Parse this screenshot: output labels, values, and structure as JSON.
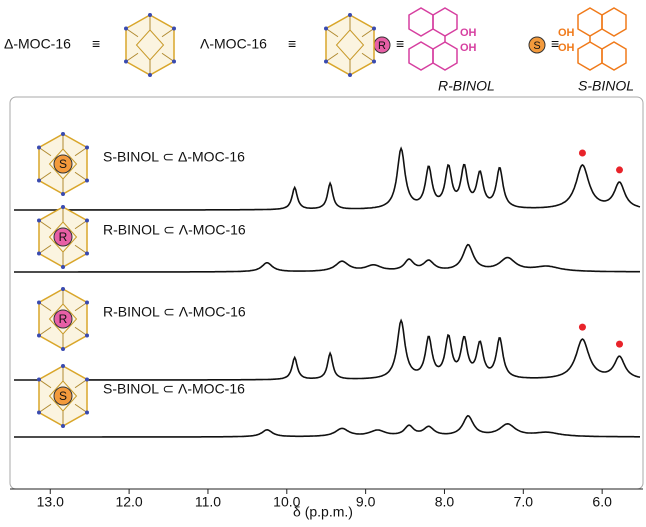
{
  "legend": {
    "delta": "Δ-MOC-16",
    "lambda": "Λ-MOC-16",
    "equiv": "≡",
    "r_guest": "R",
    "s_guest": "S",
    "r_name": "R-BINOL",
    "s_name": "S-BINOL",
    "oh": "OH"
  },
  "chart_data": {
    "type": "spectrum",
    "xlabel": "δ (p.p.m.)",
    "xlim": [
      13.46,
      5.52
    ],
    "xticks": [
      {
        "value": 13,
        "label": "13.0"
      },
      {
        "value": 12,
        "label": "12.0"
      },
      {
        "value": 11,
        "label": "11.0"
      },
      {
        "value": 10,
        "label": "10.0"
      },
      {
        "value": 9,
        "label": "9.0"
      },
      {
        "value": 8,
        "label": "8.0"
      },
      {
        "value": 7,
        "label": "7.0"
      },
      {
        "value": 6,
        "label": "6.0"
      }
    ],
    "dot_color": "#e8232a",
    "series": [
      {
        "name": "S-BINOL ⊂ Δ-MOC-16",
        "guest": "S",
        "color": "#f39a3c",
        "peaks": [
          {
            "ppm": 9.9,
            "height": 22,
            "width": 0.04
          },
          {
            "ppm": 9.45,
            "height": 26,
            "width": 0.04
          },
          {
            "ppm": 8.55,
            "height": 60,
            "width": 0.06
          },
          {
            "ppm": 8.2,
            "height": 40,
            "width": 0.05
          },
          {
            "ppm": 7.95,
            "height": 40,
            "width": 0.05
          },
          {
            "ppm": 7.75,
            "height": 40,
            "width": 0.05
          },
          {
            "ppm": 7.55,
            "height": 34,
            "width": 0.05
          },
          {
            "ppm": 7.3,
            "height": 40,
            "width": 0.05
          },
          {
            "ppm": 6.25,
            "height": 44,
            "width": 0.1,
            "dot": true
          },
          {
            "ppm": 5.78,
            "height": 26,
            "width": 0.08,
            "dot": true
          }
        ]
      },
      {
        "name": "R-BINOL ⊂ Λ-MOC-16",
        "guest": "R",
        "color": "#e75fa6",
        "peaks": [
          {
            "ppm": 10.25,
            "height": 9,
            "width": 0.08
          },
          {
            "ppm": 9.3,
            "height": 10,
            "width": 0.1
          },
          {
            "ppm": 8.9,
            "height": 6,
            "width": 0.12
          },
          {
            "ppm": 8.45,
            "height": 11,
            "width": 0.07
          },
          {
            "ppm": 8.2,
            "height": 10,
            "width": 0.08
          },
          {
            "ppm": 7.7,
            "height": 26,
            "width": 0.08
          },
          {
            "ppm": 7.2,
            "height": 13,
            "width": 0.12
          },
          {
            "ppm": 6.7,
            "height": 5,
            "width": 0.2
          }
        ]
      },
      {
        "name": "R-BINOL ⊂ Λ-MOC-16",
        "guest": "R",
        "color": "#e75fa6",
        "peaks": [
          {
            "ppm": 9.9,
            "height": 22,
            "width": 0.04
          },
          {
            "ppm": 9.45,
            "height": 26,
            "width": 0.04
          },
          {
            "ppm": 8.55,
            "height": 58,
            "width": 0.06
          },
          {
            "ppm": 8.2,
            "height": 40,
            "width": 0.05
          },
          {
            "ppm": 7.95,
            "height": 40,
            "width": 0.05
          },
          {
            "ppm": 7.75,
            "height": 38,
            "width": 0.05
          },
          {
            "ppm": 7.55,
            "height": 34,
            "width": 0.05
          },
          {
            "ppm": 7.3,
            "height": 40,
            "width": 0.05
          },
          {
            "ppm": 6.25,
            "height": 40,
            "width": 0.1,
            "dot": true
          },
          {
            "ppm": 5.78,
            "height": 22,
            "width": 0.08,
            "dot": true
          }
        ]
      },
      {
        "name": "S-BINOL ⊂ Λ-MOC-16",
        "guest": "S",
        "color": "#f39a3c",
        "peaks": [
          {
            "ppm": 10.25,
            "height": 7,
            "width": 0.08
          },
          {
            "ppm": 9.3,
            "height": 8,
            "width": 0.1
          },
          {
            "ppm": 8.85,
            "height": 6,
            "width": 0.12
          },
          {
            "ppm": 8.45,
            "height": 10,
            "width": 0.07
          },
          {
            "ppm": 8.2,
            "height": 9,
            "width": 0.08
          },
          {
            "ppm": 7.7,
            "height": 20,
            "width": 0.08
          },
          {
            "ppm": 7.2,
            "height": 12,
            "width": 0.12
          },
          {
            "ppm": 6.7,
            "height": 4,
            "width": 0.2
          }
        ]
      }
    ]
  }
}
